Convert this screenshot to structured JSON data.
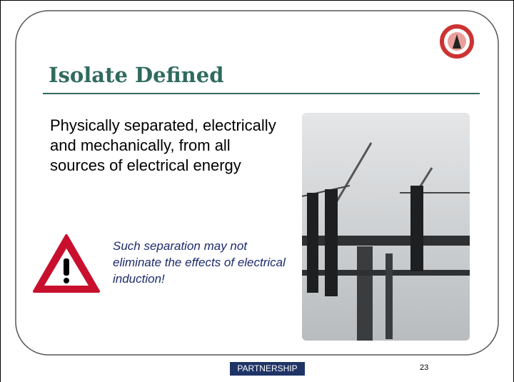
{
  "slide": {
    "title": "Isolate Defined",
    "body": "Physically separated, electrically and mechanically, from all sources of electrical energy",
    "note": "Such separation may not eliminate the effects of electrical induction!",
    "footer": {
      "badge": "PARTNERSHIP",
      "page_number": "23"
    }
  }
}
